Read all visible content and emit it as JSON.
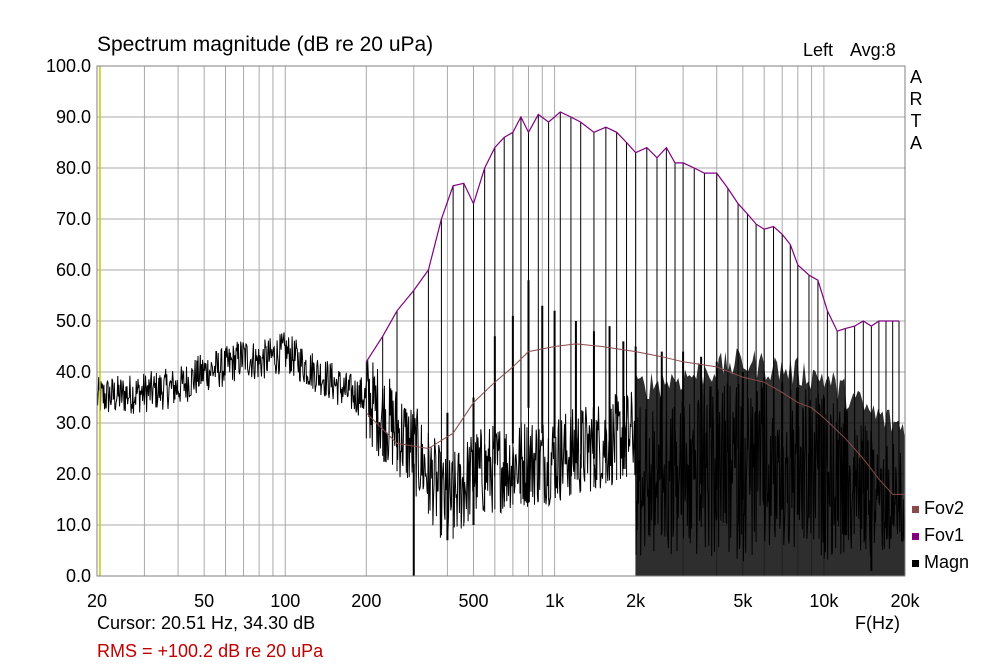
{
  "header": {
    "title": "Spectrum magnitude (dB re 20 uPa)",
    "channel": "Left",
    "averaging": "Avg:8"
  },
  "brand": [
    "A",
    "R",
    "T",
    "A"
  ],
  "footer": {
    "cursor": "Cursor: 20.51 Hz, 34.30 dB",
    "rms": "RMS = +100.2 dB re 20 uPa",
    "x_unit": "F(Hz)"
  },
  "colors": {
    "magn": "#000000",
    "fov1": "#800080",
    "fov2": "#8b4a4a",
    "rms": "#c00000",
    "grid": "#aaaaaa",
    "cursor": "#c8c800"
  },
  "chart_data": {
    "type": "line",
    "x_scale": "log",
    "xlim": [
      20,
      20000
    ],
    "ylim": [
      0,
      100
    ],
    "cursor_x": 20.51,
    "y_ticks": [
      "100.0",
      "90.0",
      "80.0",
      "70.0",
      "60.0",
      "50.0",
      "40.0",
      "30.0",
      "20.0",
      "10.0",
      "0.0"
    ],
    "x_ticks": [
      {
        "v": 20,
        "label": "20"
      },
      {
        "v": 50,
        "label": "50"
      },
      {
        "v": 100,
        "label": "100"
      },
      {
        "v": 200,
        "label": "200"
      },
      {
        "v": 500,
        "label": "500"
      },
      {
        "v": 1000,
        "label": "1k"
      },
      {
        "v": 2000,
        "label": "2k"
      },
      {
        "v": 5000,
        "label": "5k"
      },
      {
        "v": 10000,
        "label": "10k"
      },
      {
        "v": 20000,
        "label": "20k"
      }
    ],
    "legend": [
      "Fov2",
      "Fov1",
      "Magn"
    ],
    "series": [
      {
        "name": "Fov1",
        "x": [
          200,
          230,
          260,
          300,
          340,
          380,
          420,
          460,
          500,
          550,
          600,
          650,
          700,
          750,
          800,
          870,
          950,
          1050,
          1150,
          1250,
          1400,
          1550,
          1700,
          1850,
          2000,
          2200,
          2400,
          2600,
          2800,
          3000,
          3300,
          3600,
          4000,
          4400,
          4800,
          5200,
          5600,
          6000,
          6500,
          7000,
          7500,
          8000,
          8800,
          9500,
          10300,
          11200,
          12000,
          13000,
          14000,
          15000,
          16000,
          17000,
          18000,
          19000
        ],
        "y": [
          42,
          47,
          52,
          56,
          60,
          70,
          76.5,
          77,
          73,
          80,
          84,
          86,
          87,
          90,
          87,
          90.5,
          89,
          91,
          90,
          89,
          87,
          88,
          87,
          85,
          83,
          84,
          82,
          84,
          81,
          81,
          80,
          79,
          79,
          76,
          73,
          71,
          69,
          68,
          68.5,
          67,
          65,
          61,
          59,
          58,
          52,
          48,
          48.5,
          49,
          50,
          49,
          50,
          50,
          50,
          50
        ]
      },
      {
        "name": "Fov2",
        "x": [
          200,
          260,
          340,
          420,
          500,
          600,
          700,
          800,
          1000,
          1200,
          1500,
          2000,
          2500,
          3000,
          4000,
          5000,
          6000,
          7000,
          8000,
          9000,
          10000,
          12000,
          14000,
          16000,
          18000,
          20000
        ],
        "y": [
          32,
          26,
          25,
          28,
          34,
          38,
          41,
          44,
          45,
          45.5,
          45,
          44,
          43,
          42,
          41,
          39,
          38,
          36,
          34,
          33,
          31,
          27,
          23,
          19,
          16,
          16
        ]
      },
      {
        "name": "Magn",
        "envelope_x": [
          20,
          30,
          40,
          50,
          60,
          70,
          80,
          100,
          120,
          150,
          170,
          200,
          300,
          400,
          500,
          700,
          1000,
          2000,
          3000,
          5000,
          10000,
          15000,
          20000
        ],
        "envelope_y": [
          35,
          36,
          37,
          40,
          41,
          43,
          42,
          44,
          41,
          38,
          36,
          35,
          25,
          14,
          20,
          22,
          23,
          28,
          30,
          33,
          30,
          23,
          20
        ],
        "peaks_x": [
          300,
          400,
          500,
          600,
          700,
          800,
          900,
          1000,
          1200,
          1400,
          1600,
          1800,
          2000,
          2500,
          3000,
          3500,
          4000,
          5000,
          6000,
          7000,
          8000,
          10000,
          12000,
          15000
        ],
        "peaks_y": [
          22,
          32,
          35,
          47,
          51,
          58,
          53,
          52,
          50,
          48,
          49,
          46,
          45,
          44,
          44,
          43,
          42,
          40,
          39,
          38,
          37,
          35,
          33,
          26
        ]
      }
    ]
  }
}
